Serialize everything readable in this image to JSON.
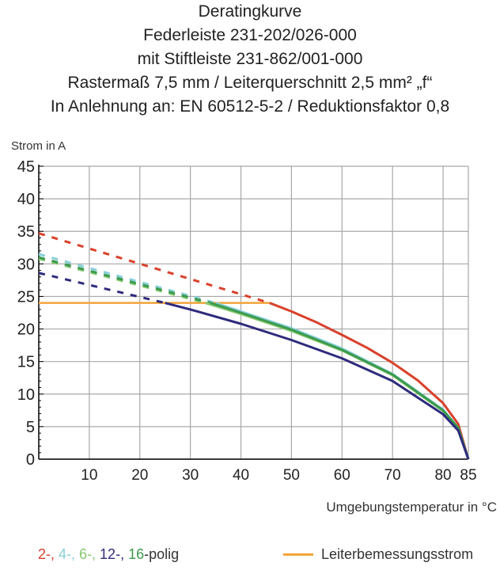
{
  "chart_data": {
    "type": "line",
    "title_lines": [
      "Deratingkurve",
      "Federleiste 231-202/026-000",
      "mit Stiftleiste 231-862/001-000",
      "Rastermaß 7,5 mm / Leiterquerschnitt 2,5 mm² „f“",
      "In Anlehnung an: EN 60512-5-2 / Reduktionsfaktor 0,8"
    ],
    "ylabel": "Strom in A",
    "xlabel": "Umgebungstemperatur in °C",
    "xlim": [
      0,
      85
    ],
    "ylim": [
      0,
      45
    ],
    "xticks": [
      10,
      20,
      30,
      40,
      50,
      60,
      70,
      80,
      85
    ],
    "yticks": [
      0,
      5,
      10,
      15,
      20,
      25,
      30,
      35,
      40,
      45
    ],
    "grid": true,
    "series": [
      {
        "key": "2",
        "color": "#d9412b",
        "dashed": {
          "x": [
            0,
            45.7
          ],
          "y": [
            34.7,
            24
          ]
        },
        "solid": {
          "x": [
            45.7,
            50,
            55,
            60,
            65,
            70,
            75,
            80,
            83,
            85
          ],
          "y": [
            24,
            22.7,
            21.0,
            19.1,
            17.1,
            14.8,
            12.1,
            8.6,
            5.4,
            0
          ]
        }
      },
      {
        "key": "4",
        "color": "#86d0d8",
        "dashed": {
          "x": [
            0,
            35
          ],
          "y": [
            31.5,
            24
          ]
        },
        "solid": {
          "x": [
            35,
            40,
            50,
            60,
            70,
            80,
            83,
            85
          ],
          "y": [
            24,
            22.7,
            20.1,
            17.0,
            13.1,
            7.6,
            4.8,
            0
          ]
        }
      },
      {
        "key": "6",
        "color": "#86c96e",
        "dashed": {
          "x": [
            0,
            33
          ],
          "y": [
            30.8,
            24
          ]
        },
        "solid": {
          "x": [
            33,
            40,
            50,
            60,
            70,
            80,
            83,
            85
          ],
          "y": [
            24,
            22.3,
            19.7,
            16.7,
            12.9,
            7.4,
            4.7,
            0
          ]
        }
      },
      {
        "key": "16",
        "color": "#3c9a4e",
        "dashed": {
          "x": [
            0,
            34
          ],
          "y": [
            31.0,
            24
          ]
        },
        "solid": {
          "x": [
            34,
            40,
            50,
            60,
            70,
            80,
            83,
            85
          ],
          "y": [
            24,
            22.5,
            19.9,
            16.8,
            13.0,
            7.5,
            4.8,
            0
          ]
        }
      },
      {
        "key": "12",
        "color": "#2e2b7c",
        "dashed": {
          "x": [
            0,
            25
          ],
          "y": [
            28.6,
            24
          ]
        },
        "solid": {
          "x": [
            25,
            30,
            40,
            50,
            60,
            70,
            80,
            83,
            85
          ],
          "y": [
            24,
            23.0,
            20.8,
            18.3,
            15.5,
            12.0,
            6.9,
            4.4,
            0
          ]
        }
      }
    ],
    "reference_line": {
      "name": "Leiterbemessungsstrom",
      "color": "#f3a43a",
      "y": 24,
      "x": [
        0,
        45.7
      ]
    },
    "legend": {
      "placement": "bottom",
      "series_parts": [
        {
          "text": "2-, ",
          "color": "#d9412b"
        },
        {
          "text": "4-, ",
          "color": "#86d0d8"
        },
        {
          "text": "6-, ",
          "color": "#86c96e"
        },
        {
          "text": "12-, ",
          "color": "#2e2b7c"
        },
        {
          "text": "16",
          "color": "#3c9a4e"
        },
        {
          "text": "-polig",
          "color": "#333333"
        }
      ],
      "reference_label": "Leiterbemessungsstrom"
    }
  }
}
